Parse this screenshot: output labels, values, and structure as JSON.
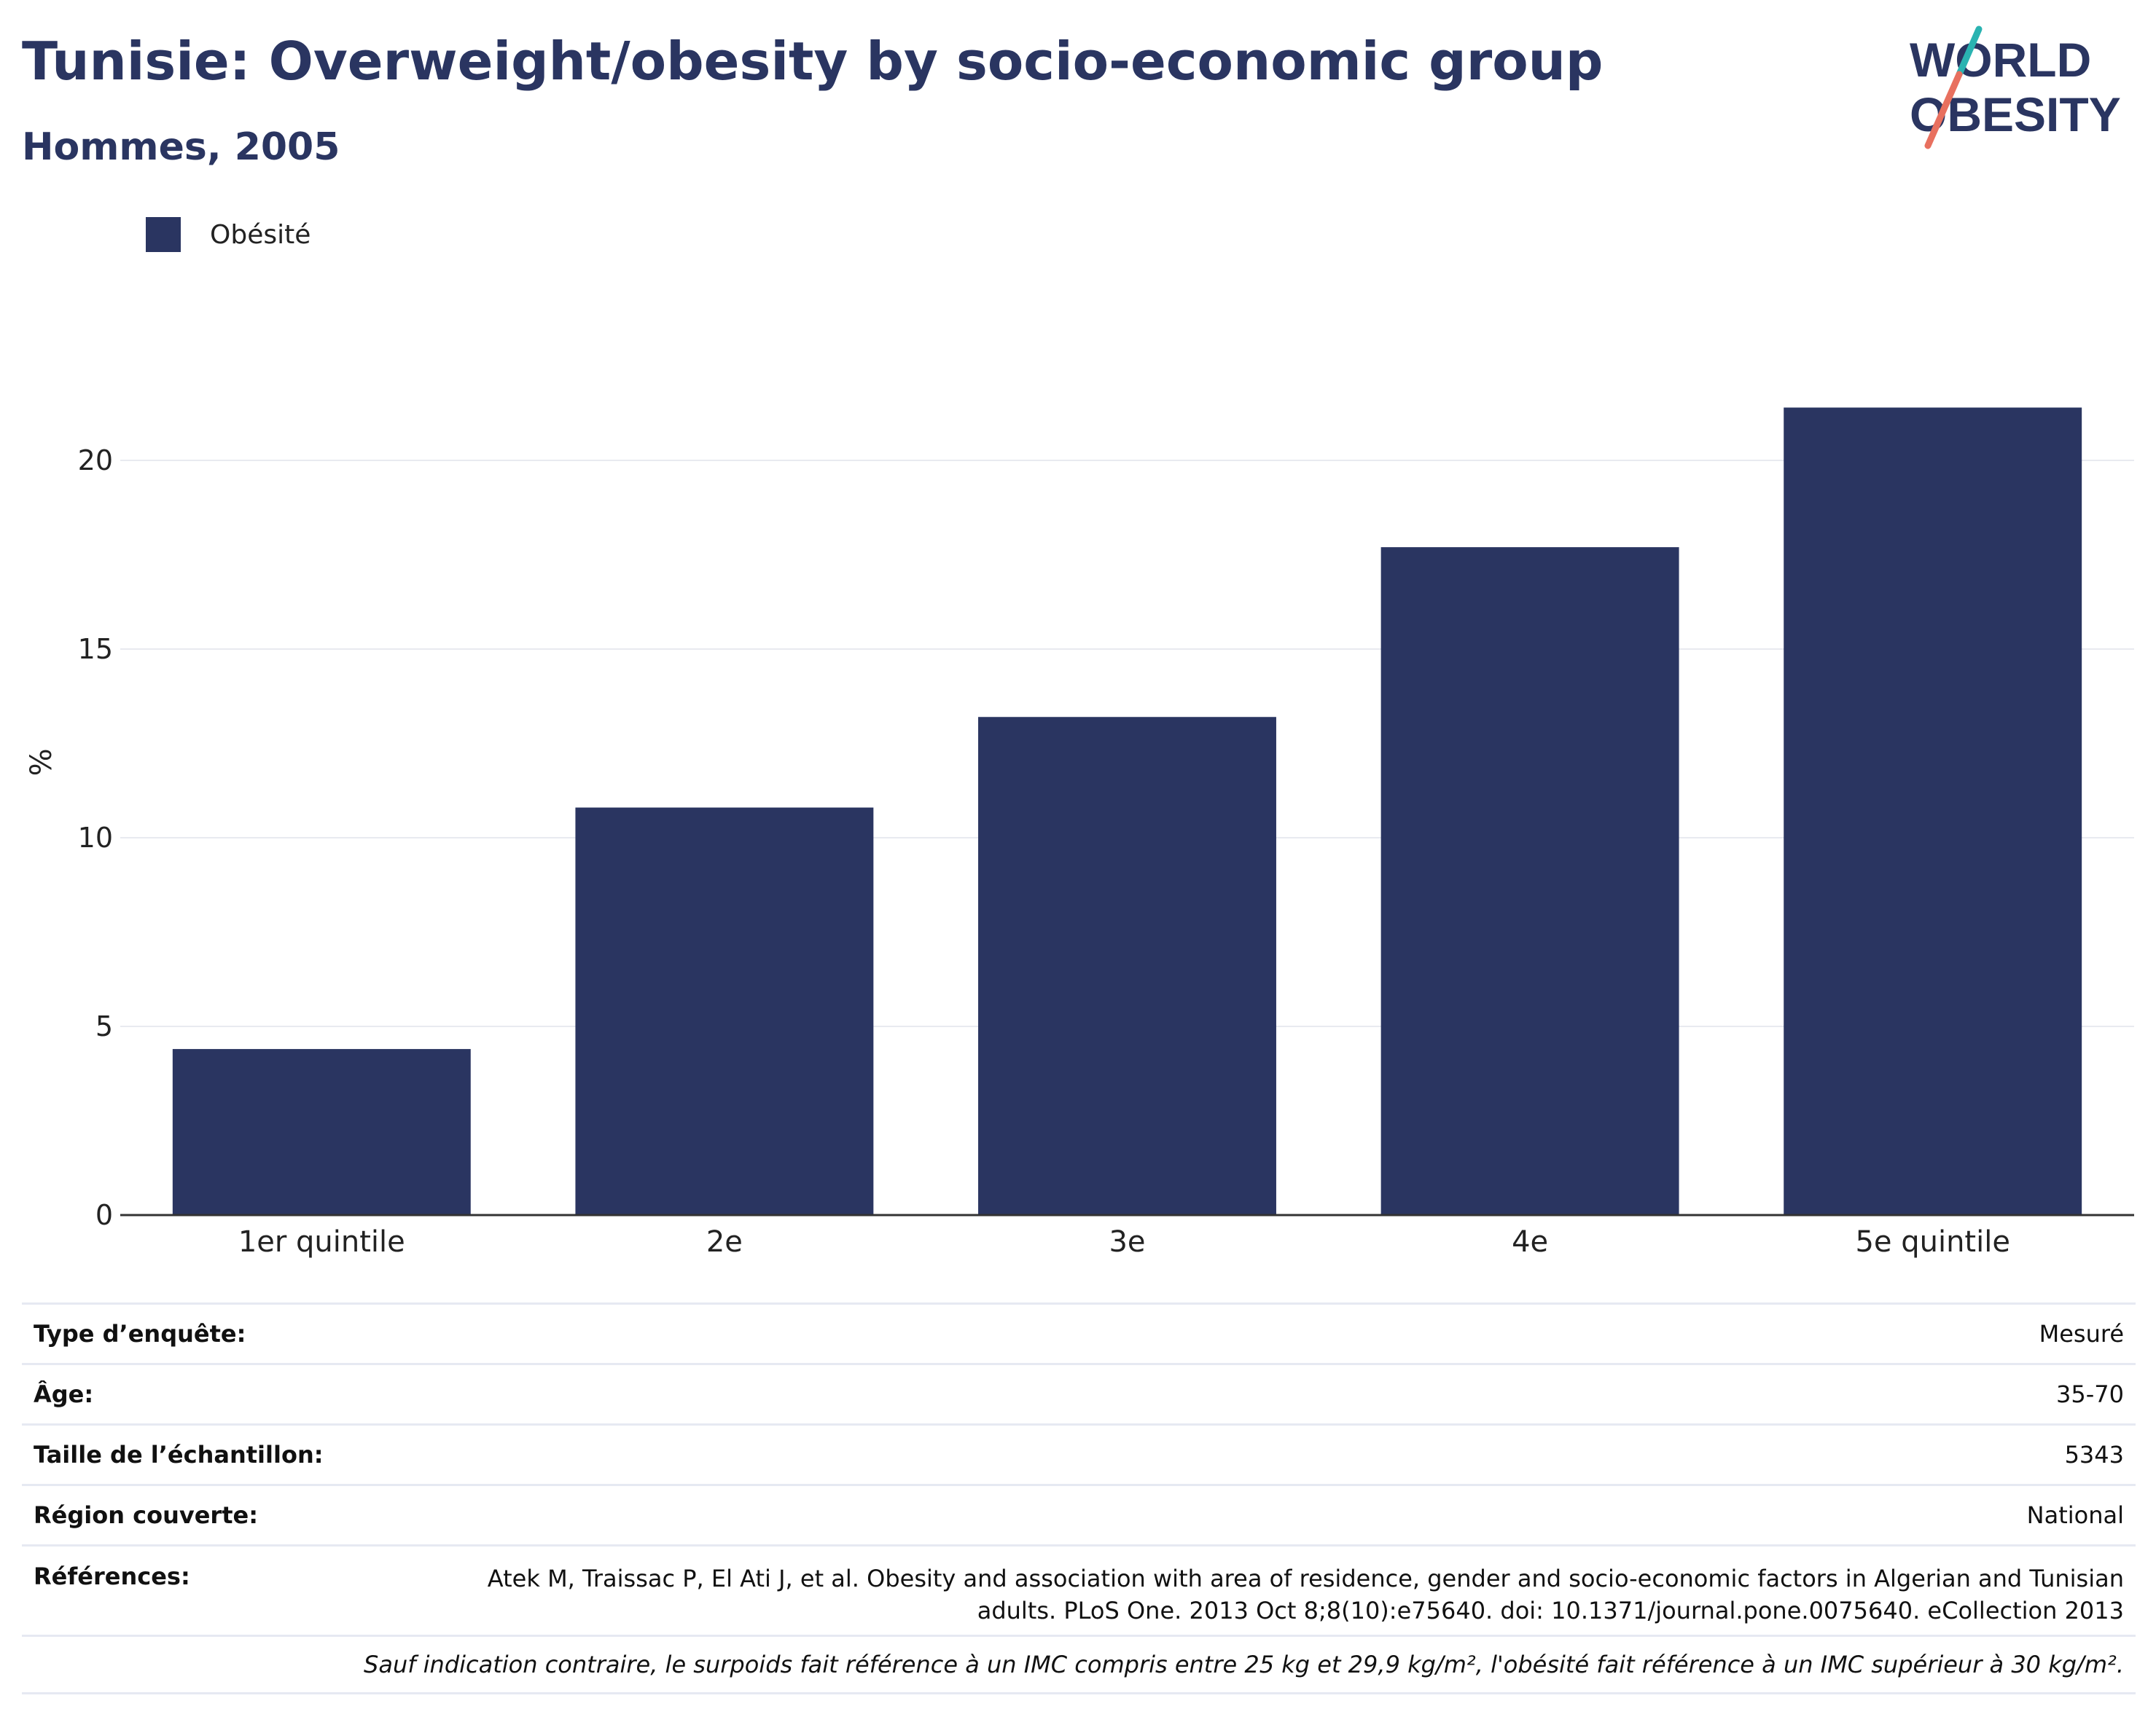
{
  "title": "Tunisie: Overweight/obesity by socio-economic group",
  "subtitle": "Hommes, 2005",
  "logo": {
    "line1": "WORLD",
    "line2": "OBESITY",
    "colors": [
      "#2a3561",
      "#2ab3b1",
      "#e8705f"
    ]
  },
  "colors": {
    "bar": "#2a3561",
    "grid": "#e8eaf0",
    "axis": "#333333",
    "text": "#2a3561"
  },
  "chart_data": {
    "type": "bar",
    "categories": [
      "1er quintile",
      "2e",
      "3e",
      "4e",
      "5e quintile"
    ],
    "series": [
      {
        "name": "Obésité",
        "values": [
          4.4,
          10.8,
          13.2,
          17.7,
          21.4
        ]
      }
    ],
    "xlabel": "",
    "ylabel": "%",
    "ylim": [
      0,
      23.5
    ],
    "yticks": [
      0,
      5,
      10,
      15,
      20
    ],
    "grid": true,
    "legend": "top-left"
  },
  "info": {
    "survey_type_label": "Type d’enquête:",
    "survey_type_value": "Mesuré",
    "age_label": "Âge:",
    "age_value": "35-70",
    "sample_label": "Taille de l’échantillon:",
    "sample_value": "5343",
    "region_label": "Région couverte:",
    "region_value": "National",
    "refs_label": "Références:",
    "refs_value": "Atek M, Traissac P, El Ati J, et al. Obesity and association with area of residence, gender and socio-economic factors in Algerian and Tunisian adults. PLoS One. 2013 Oct 8;8(10):e75640. doi: 10.1371/journal.pone.0075640. eCollection 2013",
    "note": "Sauf indication contraire, le surpoids fait référence à un IMC compris entre 25 kg et 29,9 kg/m², l'obésité fait référence à un IMC supérieur à 30 kg/m²."
  }
}
